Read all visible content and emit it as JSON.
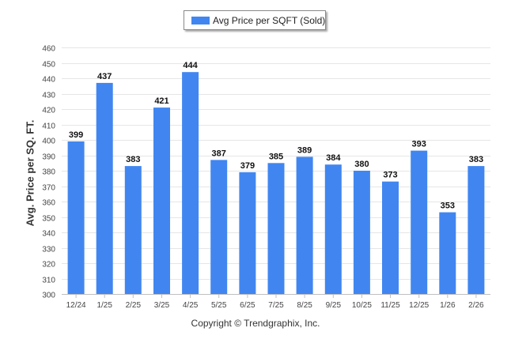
{
  "legend": {
    "label": "Avg Price per SQFT (Sold)"
  },
  "credit": "Copyright © Trendgraphix, Inc.",
  "chart_data": {
    "type": "bar",
    "title": "",
    "xlabel": "",
    "ylabel": "Avg. Price per SQ. FT.",
    "ylim": [
      300,
      460
    ],
    "ytick_step": 10,
    "grid": true,
    "legend_position": "top-center",
    "categories": [
      "12/24",
      "1/25",
      "2/25",
      "3/25",
      "4/25",
      "5/25",
      "6/25",
      "7/25",
      "8/25",
      "9/25",
      "10/25",
      "11/25",
      "12/25",
      "1/26",
      "2/26"
    ],
    "series": [
      {
        "name": "Avg Price per SQFT (Sold)",
        "color": "#4186f0",
        "values": [
          399,
          437,
          383,
          421,
          444,
          387,
          379,
          385,
          389,
          384,
          380,
          373,
          393,
          353,
          383
        ]
      }
    ]
  }
}
